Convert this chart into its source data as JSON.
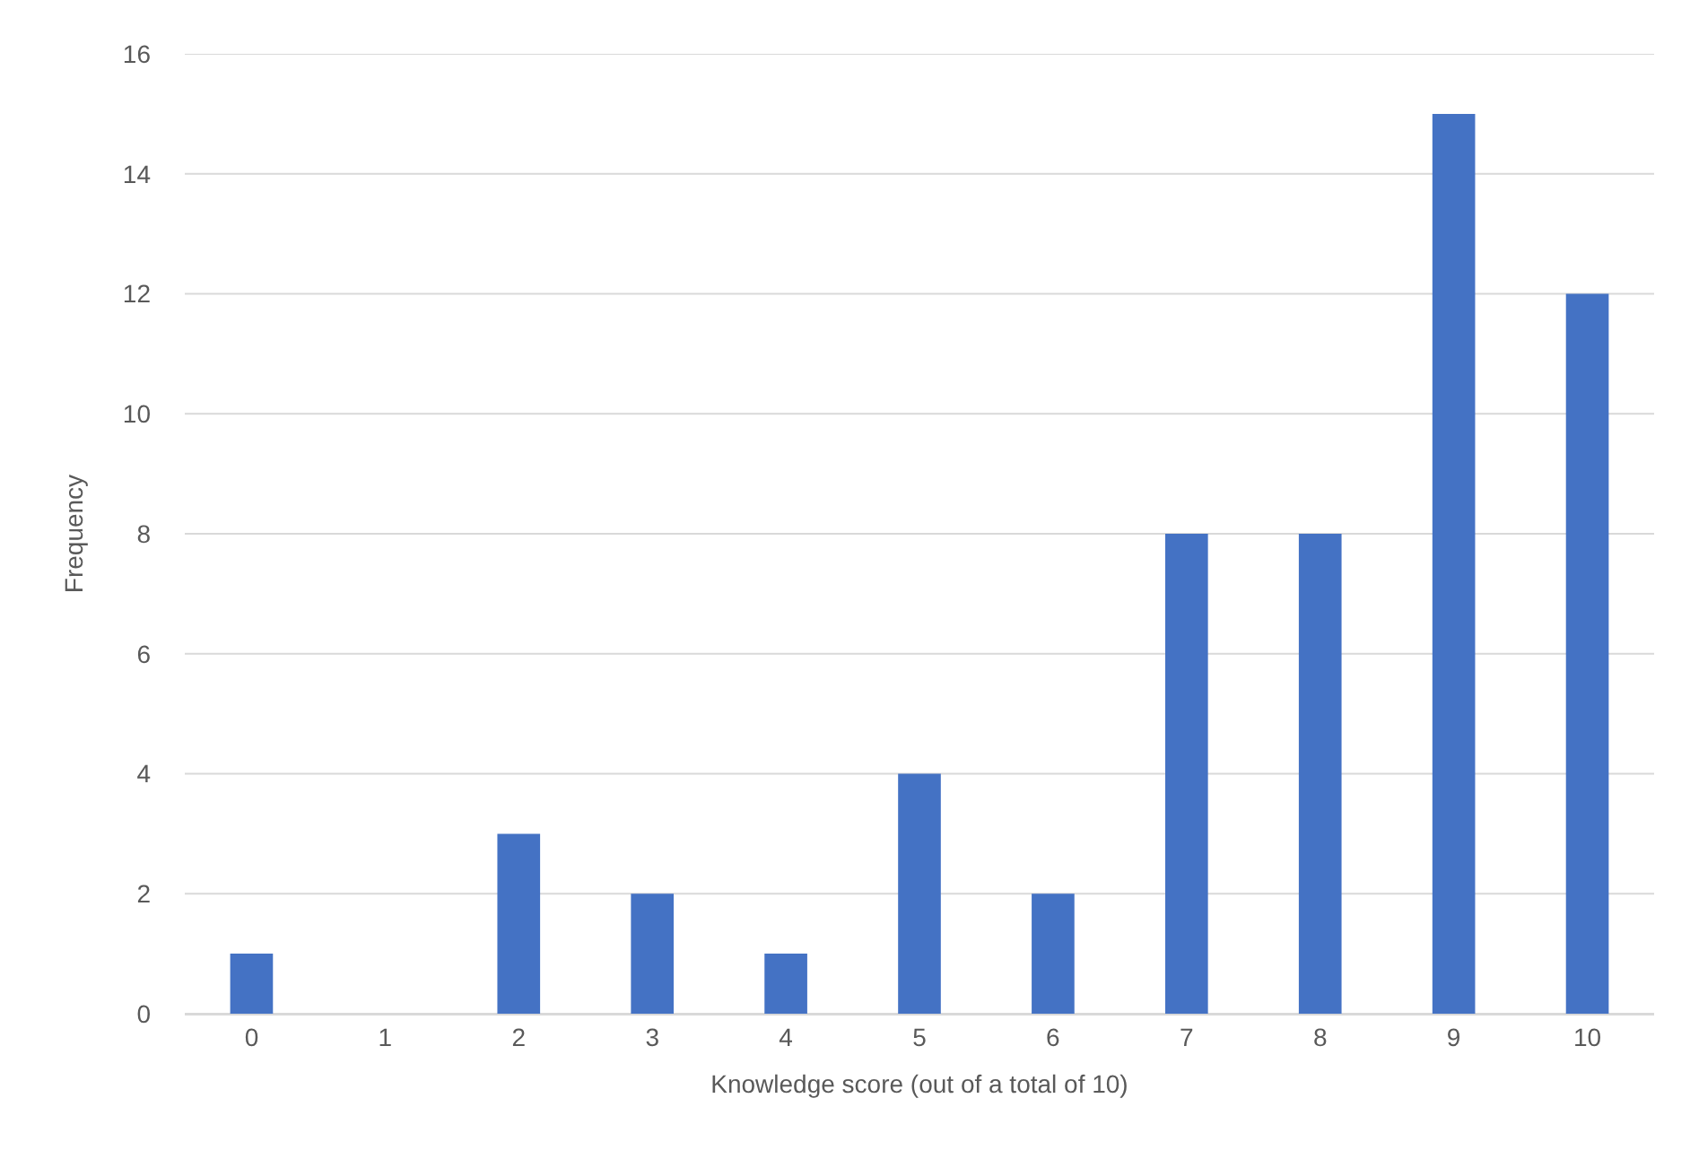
{
  "chart_data": {
    "type": "bar",
    "xlabel": "Knowledge score (out of a total of 10)",
    "ylabel": "Frequency",
    "categories": [
      "0",
      "1",
      "2",
      "3",
      "4",
      "5",
      "6",
      "7",
      "8",
      "9",
      "10"
    ],
    "values": [
      1,
      0,
      3,
      2,
      1,
      4,
      2,
      8,
      8,
      15,
      12
    ],
    "color": "#4472c4",
    "ylim": [
      0,
      16
    ],
    "yticks": [
      0,
      2,
      4,
      6,
      8,
      10,
      12,
      14,
      16
    ],
    "grid": "y"
  }
}
